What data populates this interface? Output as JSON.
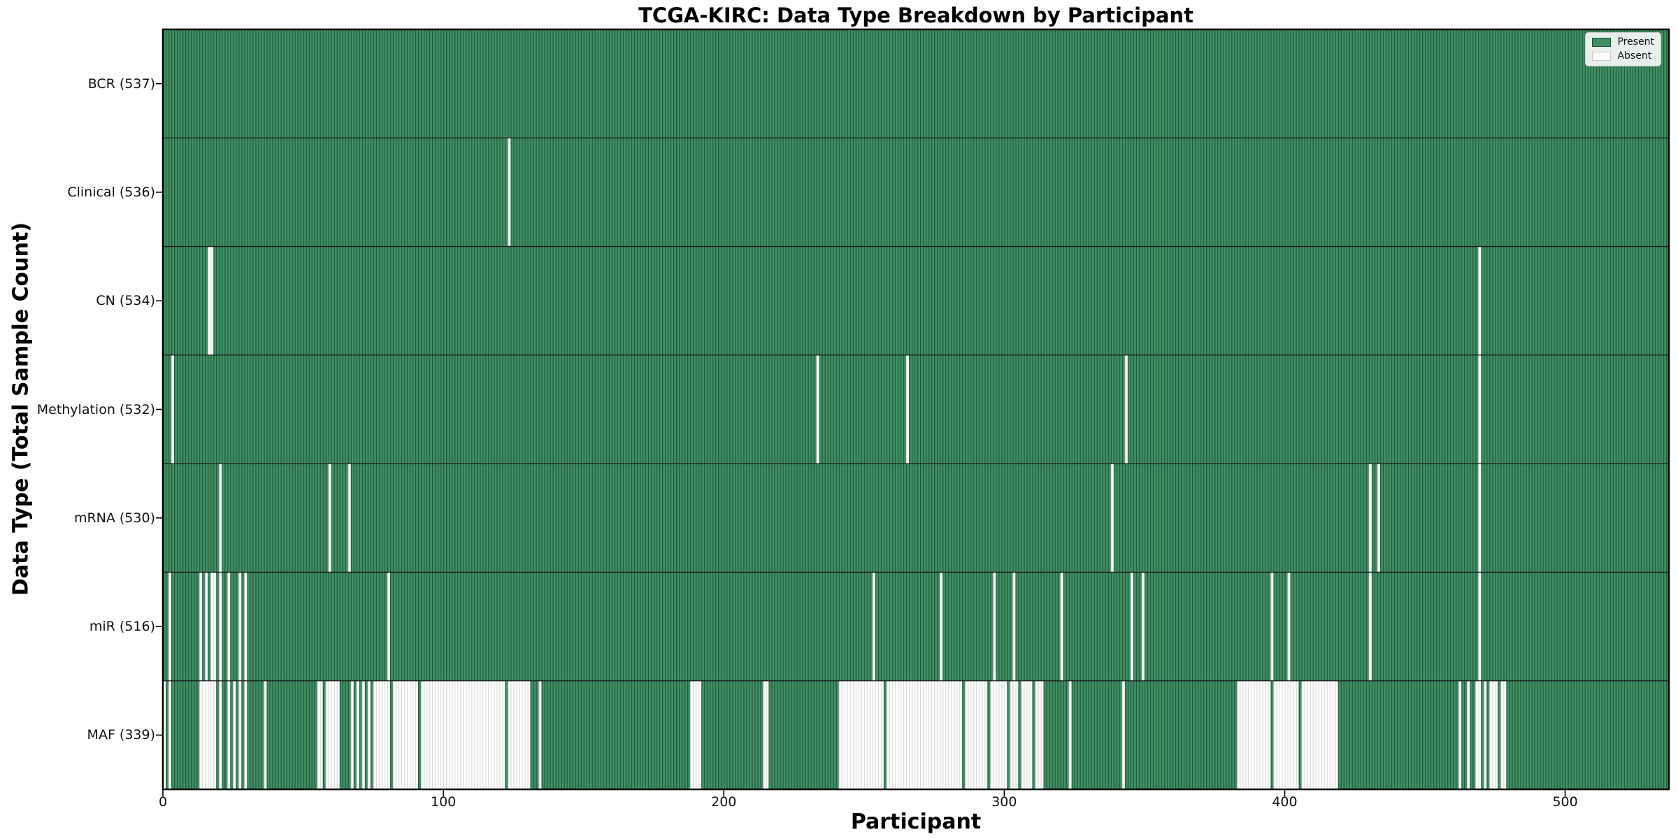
{
  "chart_data": {
    "type": "heatmap",
    "title": "TCGA-KIRC: Data Type Breakdown by Participant",
    "xlabel": "Participant",
    "ylabel": "Data Type (Total Sample Count)",
    "x_ticks": [
      0,
      100,
      200,
      300,
      400,
      500
    ],
    "x_range": [
      0,
      537
    ],
    "n_participants": 537,
    "grid": false,
    "legend": {
      "position": "upper-right",
      "entries": [
        {
          "label": "Present",
          "color": "#3E9164"
        },
        {
          "label": "Absent",
          "color": "#FFFFFF"
        }
      ]
    },
    "colors": {
      "present": "#3E9164",
      "absent": "#FFFFFF",
      "cell_edge_on_present": "rgba(0,0,0,0.42)",
      "cell_edge_on_absent": "rgba(0,0,0,0.15)",
      "row_separator": "#1a1a1a",
      "plot_border": "#000000",
      "background": "#FFFFFF"
    },
    "rows": [
      {
        "label": "BCR (537)",
        "data_type": "BCR",
        "present_count": 537,
        "absent_ranges": []
      },
      {
        "label": "Clinical (536)",
        "data_type": "Clinical",
        "present_count": 536,
        "absent_ranges": [
          [
            123,
            123
          ]
        ]
      },
      {
        "label": "CN (534)",
        "data_type": "CN",
        "present_count": 534,
        "absent_ranges": [
          [
            16,
            17
          ],
          [
            469,
            469
          ]
        ]
      },
      {
        "label": "Methylation (532)",
        "data_type": "Methylation",
        "present_count": 532,
        "absent_ranges": [
          [
            3,
            3
          ],
          [
            233,
            233
          ],
          [
            265,
            265
          ],
          [
            343,
            343
          ],
          [
            469,
            469
          ]
        ]
      },
      {
        "label": "mRNA (530)",
        "data_type": "mRNA",
        "present_count": 530,
        "absent_ranges": [
          [
            20,
            20
          ],
          [
            59,
            59
          ],
          [
            66,
            66
          ],
          [
            338,
            338
          ],
          [
            430,
            430
          ],
          [
            433,
            433
          ],
          [
            469,
            469
          ]
        ]
      },
      {
        "label": "miR (516)",
        "data_type": "miR",
        "present_count": 516,
        "absent_ranges": [
          [
            2,
            2
          ],
          [
            13,
            13
          ],
          [
            15,
            15
          ],
          [
            17,
            18
          ],
          [
            20,
            20
          ],
          [
            23,
            23
          ],
          [
            27,
            27
          ],
          [
            29,
            29
          ],
          [
            80,
            80
          ],
          [
            253,
            253
          ],
          [
            277,
            277
          ],
          [
            296,
            296
          ],
          [
            303,
            303
          ],
          [
            320,
            320
          ],
          [
            345,
            345
          ],
          [
            349,
            349
          ],
          [
            395,
            395
          ],
          [
            401,
            401
          ],
          [
            430,
            430
          ],
          [
            469,
            469
          ]
        ]
      },
      {
        "label": "MAF (339)",
        "data_type": "MAF",
        "present_count": 339,
        "absent_ranges": [
          [
            0,
            0
          ],
          [
            2,
            2
          ],
          [
            13,
            18
          ],
          [
            20,
            20
          ],
          [
            23,
            23
          ],
          [
            25,
            25
          ],
          [
            27,
            27
          ],
          [
            29,
            29
          ],
          [
            36,
            36
          ],
          [
            55,
            56
          ],
          [
            58,
            62
          ],
          [
            67,
            67
          ],
          [
            69,
            69
          ],
          [
            71,
            71
          ],
          [
            73,
            73
          ],
          [
            75,
            80
          ],
          [
            82,
            90
          ],
          [
            92,
            121
          ],
          [
            123,
            130
          ],
          [
            134,
            134
          ],
          [
            188,
            191
          ],
          [
            214,
            215
          ],
          [
            241,
            256
          ],
          [
            258,
            284
          ],
          [
            286,
            293
          ],
          [
            295,
            300
          ],
          [
            302,
            304
          ],
          [
            306,
            309
          ],
          [
            311,
            313
          ],
          [
            323,
            323
          ],
          [
            342,
            342
          ],
          [
            383,
            394
          ],
          [
            396,
            404
          ],
          [
            406,
            418
          ],
          [
            462,
            462
          ],
          [
            465,
            465
          ],
          [
            468,
            469
          ],
          [
            471,
            471
          ],
          [
            473,
            475
          ],
          [
            477,
            478
          ]
        ]
      }
    ]
  }
}
